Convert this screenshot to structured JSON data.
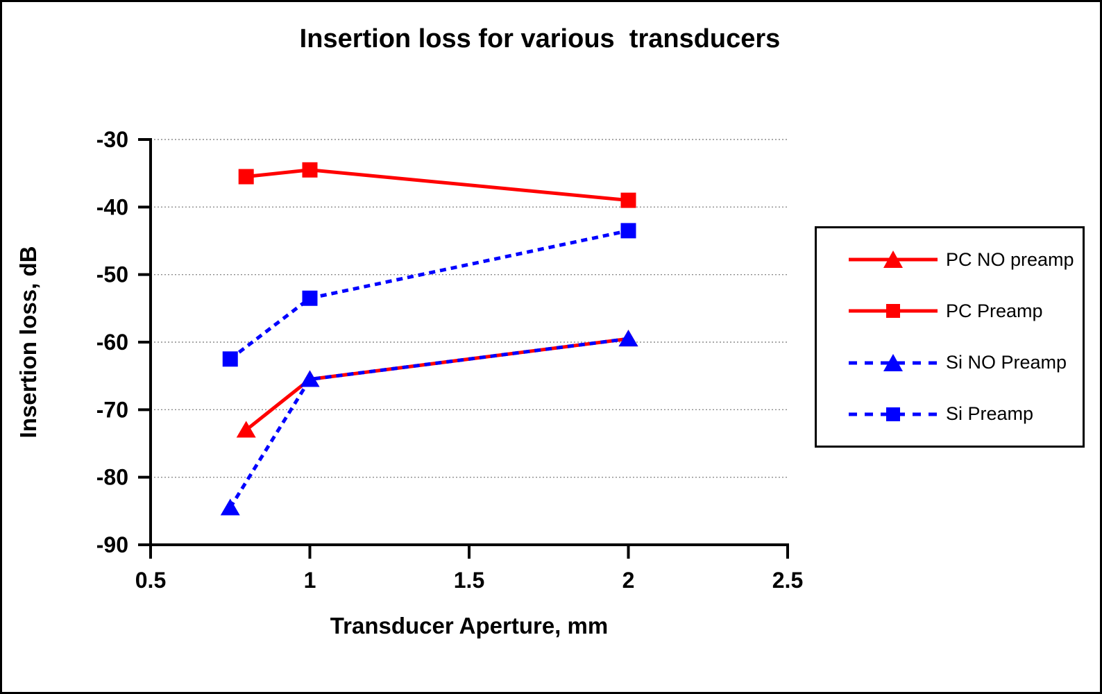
{
  "chart_data": {
    "type": "line",
    "title": "Insertion loss for various  transducers",
    "xlabel": "Transducer Aperture, mm",
    "ylabel": "Insertion loss, dB",
    "xlim": [
      0.5,
      2.5
    ],
    "ylim": [
      -90,
      -30
    ],
    "x_ticks": [
      0.5,
      1,
      1.5,
      2,
      2.5
    ],
    "x_tick_labels": [
      "0.5",
      "1",
      "1.5",
      "2",
      "2.5"
    ],
    "y_ticks": [
      -30,
      -40,
      -50,
      -60,
      -70,
      -80,
      -90
    ],
    "y_tick_labels": [
      "-30",
      "-40",
      "-50",
      "-60",
      "-70",
      "-80",
      "-90"
    ],
    "grid": "horizontal-dotted",
    "grid_color": "#8c8c8c",
    "axis_color": "#000000",
    "legend_position": "right",
    "series": [
      {
        "name": "PC NO preamp",
        "color": "#ff0000",
        "line_style": "solid",
        "marker": "triangle",
        "points": [
          [
            0.8,
            -73
          ],
          [
            1,
            -65.5
          ],
          [
            2,
            -59.5
          ]
        ]
      },
      {
        "name": "PC Preamp",
        "color": "#ff0000",
        "line_style": "solid",
        "marker": "square",
        "points": [
          [
            0.8,
            -35.5
          ],
          [
            1,
            -34.5
          ],
          [
            2,
            -39
          ]
        ]
      },
      {
        "name": "Si NO Preamp",
        "color": "#0000ff",
        "line_style": "dashed",
        "marker": "triangle",
        "points": [
          [
            0.75,
            -84.5
          ],
          [
            1,
            -65.5
          ],
          [
            2,
            -59.5
          ]
        ]
      },
      {
        "name": "Si Preamp",
        "color": "#0000ff",
        "line_style": "dashed",
        "marker": "square",
        "points": [
          [
            0.75,
            -62.5
          ],
          [
            1,
            -53.5
          ],
          [
            2,
            -43.5
          ]
        ]
      }
    ]
  }
}
